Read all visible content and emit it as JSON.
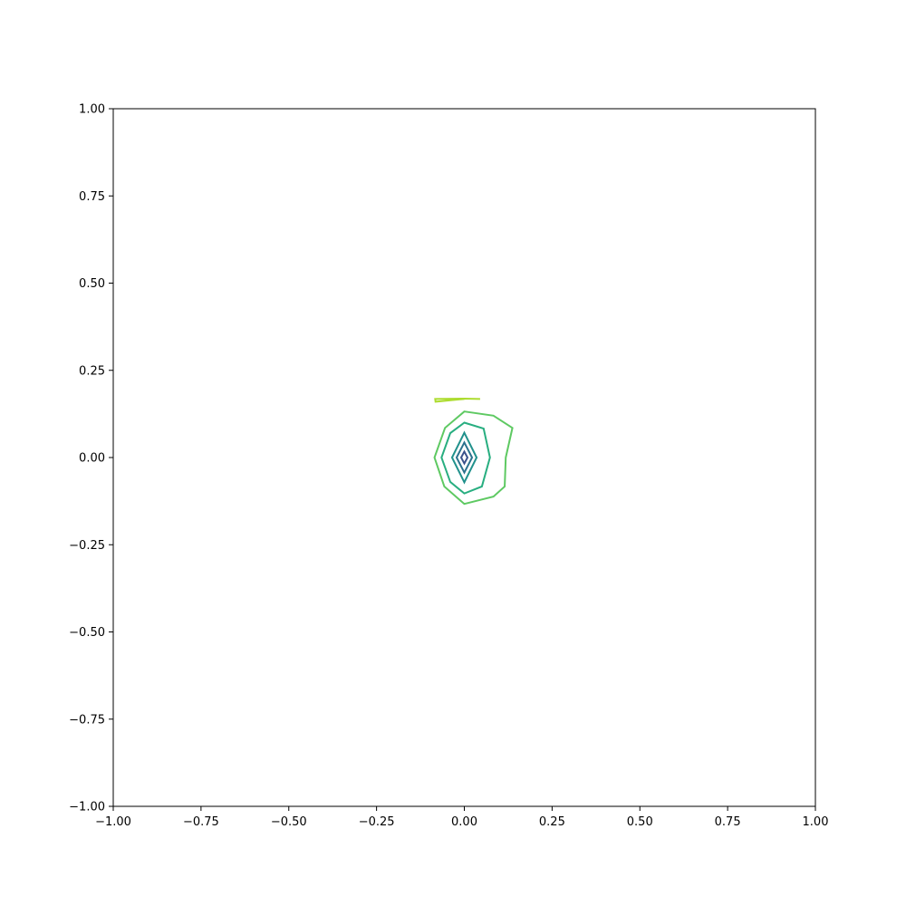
{
  "chart_data": {
    "type": "contour",
    "title": "",
    "xlabel": "",
    "ylabel": "",
    "xlim": [
      -1,
      1
    ],
    "ylim": [
      -1,
      1
    ],
    "grid": false,
    "legend": "none",
    "x_ticks": [
      {
        "value": -1.0,
        "label": "−1.00"
      },
      {
        "value": -0.75,
        "label": "−0.75"
      },
      {
        "value": -0.5,
        "label": "−0.50"
      },
      {
        "value": -0.25,
        "label": "−0.25"
      },
      {
        "value": 0.0,
        "label": "0.00"
      },
      {
        "value": 0.25,
        "label": "0.25"
      },
      {
        "value": 0.5,
        "label": "0.50"
      },
      {
        "value": 0.75,
        "label": "0.75"
      },
      {
        "value": 1.0,
        "label": "1.00"
      }
    ],
    "y_ticks": [
      {
        "value": -1.0,
        "label": "−1.00"
      },
      {
        "value": -0.75,
        "label": "−0.75"
      },
      {
        "value": -0.5,
        "label": "−0.50"
      },
      {
        "value": -0.25,
        "label": "−0.25"
      },
      {
        "value": 0.0,
        "label": "0.00"
      },
      {
        "value": 0.25,
        "label": "0.25"
      },
      {
        "value": 0.5,
        "label": "0.50"
      },
      {
        "value": 0.75,
        "label": "0.75"
      },
      {
        "value": 1.0,
        "label": "1.00"
      }
    ],
    "contours": [
      {
        "color": "#3b528b",
        "closed": true,
        "points": [
          [
            0.0,
            0.017
          ],
          [
            0.009,
            0.0
          ],
          [
            0.0,
            -0.017
          ],
          [
            -0.009,
            0.0
          ]
        ]
      },
      {
        "color": "#2c728e",
        "closed": true,
        "points": [
          [
            0.0,
            0.043
          ],
          [
            0.022,
            0.0
          ],
          [
            0.0,
            -0.043
          ],
          [
            -0.022,
            0.0
          ]
        ]
      },
      {
        "color": "#21918c",
        "closed": true,
        "points": [
          [
            0.0,
            0.071
          ],
          [
            0.035,
            0.0
          ],
          [
            0.0,
            -0.071
          ],
          [
            -0.035,
            0.0
          ]
        ]
      },
      {
        "color": "#28ae80",
        "closed": true,
        "points": [
          [
            0.0,
            0.1
          ],
          [
            0.055,
            0.083
          ],
          [
            0.073,
            0.0
          ],
          [
            0.05,
            -0.083
          ],
          [
            0.0,
            -0.103
          ],
          [
            -0.04,
            -0.07
          ],
          [
            -0.065,
            0.0
          ],
          [
            -0.04,
            0.07
          ]
        ]
      },
      {
        "color": "#5ec962",
        "closed": true,
        "points": [
          [
            0.0,
            0.132
          ],
          [
            0.083,
            0.12
          ],
          [
            0.137,
            0.085
          ],
          [
            0.118,
            0.0
          ],
          [
            0.115,
            -0.083
          ],
          [
            0.083,
            -0.112
          ],
          [
            0.0,
            -0.133
          ],
          [
            -0.057,
            -0.083
          ],
          [
            -0.085,
            0.0
          ],
          [
            -0.055,
            0.085
          ]
        ]
      },
      {
        "color": "#addc30",
        "closed": false,
        "points": [
          [
            0.045,
            0.168
          ],
          [
            0.0,
            0.169
          ],
          [
            -0.083,
            0.168
          ],
          [
            -0.082,
            0.16
          ],
          [
            0.0,
            0.168
          ]
        ]
      }
    ]
  }
}
